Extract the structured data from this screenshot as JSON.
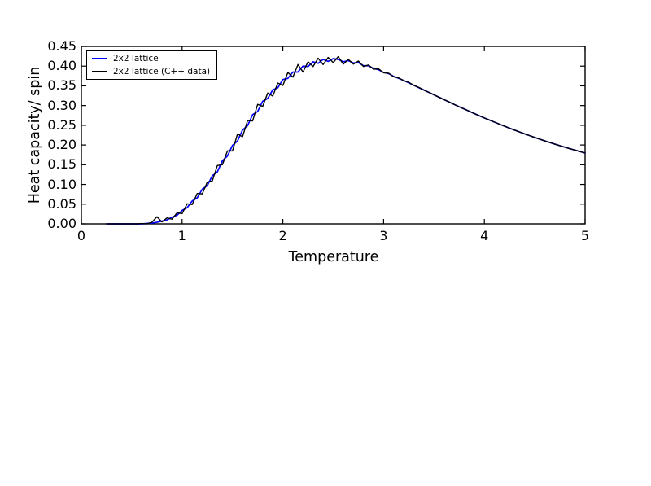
{
  "chart_data": {
    "type": "line",
    "xlabel": "Temperature",
    "ylabel": "Heat capacity/ spin",
    "xlim": [
      0,
      5
    ],
    "ylim": [
      0.0,
      0.45
    ],
    "grid": false,
    "axis_color": "#000000",
    "background_color": "#ffffff",
    "xticks": {
      "values": [
        0,
        1,
        2,
        3,
        4,
        5
      ],
      "labels": [
        "0",
        "1",
        "2",
        "3",
        "4",
        "5"
      ]
    },
    "yticks": {
      "values": [
        0.0,
        0.05,
        0.1,
        0.15,
        0.2,
        0.25,
        0.3,
        0.35,
        0.4,
        0.45
      ],
      "labels": [
        "0.00",
        "0.05",
        "0.10",
        "0.15",
        "0.20",
        "0.25",
        "0.30",
        "0.35",
        "0.40",
        "0.45"
      ]
    },
    "legend": {
      "position": "upper left",
      "entries": [
        "2x2 lattice",
        "2x2 lattice (C++ data)"
      ]
    },
    "x": [
      0.25,
      0.3,
      0.35,
      0.4,
      0.45,
      0.5,
      0.55,
      0.6,
      0.65,
      0.7,
      0.75,
      0.8,
      0.85,
      0.9,
      0.95,
      1.0,
      1.05,
      1.1,
      1.15,
      1.2,
      1.25,
      1.3,
      1.35,
      1.4,
      1.45,
      1.5,
      1.55,
      1.6,
      1.65,
      1.7,
      1.75,
      1.8,
      1.85,
      1.9,
      1.95,
      2.0,
      2.05,
      2.1,
      2.15,
      2.2,
      2.25,
      2.3,
      2.35,
      2.4,
      2.45,
      2.5,
      2.55,
      2.6,
      2.65,
      2.7,
      2.75,
      2.8,
      2.85,
      2.9,
      2.95,
      3.0,
      3.05,
      3.1,
      3.15,
      3.2,
      3.25,
      3.3,
      3.35,
      3.4,
      3.45,
      3.5,
      3.55,
      3.6,
      3.65,
      3.7,
      3.75,
      3.8,
      3.85,
      3.9,
      3.95,
      4.0,
      4.05,
      4.1,
      4.15,
      4.2,
      4.25,
      4.3,
      4.35,
      4.4,
      4.45,
      4.5,
      4.55,
      4.6,
      4.65,
      4.7,
      4.75,
      4.8,
      4.85,
      4.9,
      4.95,
      5.0
    ],
    "series": [
      {
        "name": "2x2 lattice",
        "color": "#0000ff",
        "values": [
          0.0,
          0.0,
          0.0,
          0.0,
          0.0,
          0.0,
          0.0,
          0.0,
          0.001,
          0.002,
          0.004,
          0.007,
          0.01,
          0.017,
          0.022,
          0.034,
          0.041,
          0.058,
          0.066,
          0.088,
          0.097,
          0.122,
          0.132,
          0.16,
          0.172,
          0.199,
          0.21,
          0.238,
          0.249,
          0.277,
          0.285,
          0.311,
          0.318,
          0.34,
          0.345,
          0.366,
          0.369,
          0.385,
          0.385,
          0.4,
          0.399,
          0.411,
          0.407,
          0.417,
          0.412,
          0.419,
          0.417,
          0.411,
          0.414,
          0.408,
          0.409,
          0.401,
          0.401,
          0.394,
          0.391,
          0.384,
          0.381,
          0.374,
          0.369,
          0.3635,
          0.3576,
          0.3514,
          0.3454,
          0.3394,
          0.3333,
          0.3272,
          0.3211,
          0.315,
          0.309,
          0.303,
          0.297,
          0.2914,
          0.2856,
          0.2798,
          0.2742,
          0.2686,
          0.2633,
          0.258,
          0.2529,
          0.2477,
          0.2426,
          0.2378,
          0.233,
          0.2282,
          0.2237,
          0.2192,
          0.2148,
          0.2104,
          0.2063,
          0.2021,
          0.1982,
          0.1943,
          0.1906,
          0.1869,
          0.1833,
          0.1797
        ]
      },
      {
        "name": "2x2 lattice (C++ data)",
        "color": "#000000",
        "values": [
          0.0,
          0.0,
          0.0,
          0.0,
          0.0,
          0.0,
          0.0,
          0.001,
          0.0,
          0.004,
          0.018,
          0.005,
          0.015,
          0.012,
          0.028,
          0.026,
          0.051,
          0.049,
          0.077,
          0.076,
          0.106,
          0.109,
          0.148,
          0.15,
          0.185,
          0.185,
          0.228,
          0.221,
          0.262,
          0.261,
          0.303,
          0.298,
          0.332,
          0.324,
          0.357,
          0.351,
          0.384,
          0.372,
          0.404,
          0.385,
          0.411,
          0.399,
          0.42,
          0.404,
          0.422,
          0.409,
          0.424,
          0.405,
          0.417,
          0.405,
          0.413,
          0.399,
          0.403,
          0.392,
          0.393,
          0.383,
          0.382,
          0.373,
          0.37,
          0.363,
          0.359,
          0.351,
          0.346,
          0.339,
          0.3333,
          0.3272,
          0.3211,
          0.315,
          0.309,
          0.303,
          0.297,
          0.2914,
          0.2856,
          0.2798,
          0.2742,
          0.2686,
          0.2633,
          0.258,
          0.2529,
          0.2477,
          0.2426,
          0.2378,
          0.233,
          0.2282,
          0.2237,
          0.2192,
          0.2148,
          0.2104,
          0.2063,
          0.2021,
          0.1982,
          0.1943,
          0.1906,
          0.1869,
          0.1833,
          0.1797
        ]
      }
    ]
  }
}
